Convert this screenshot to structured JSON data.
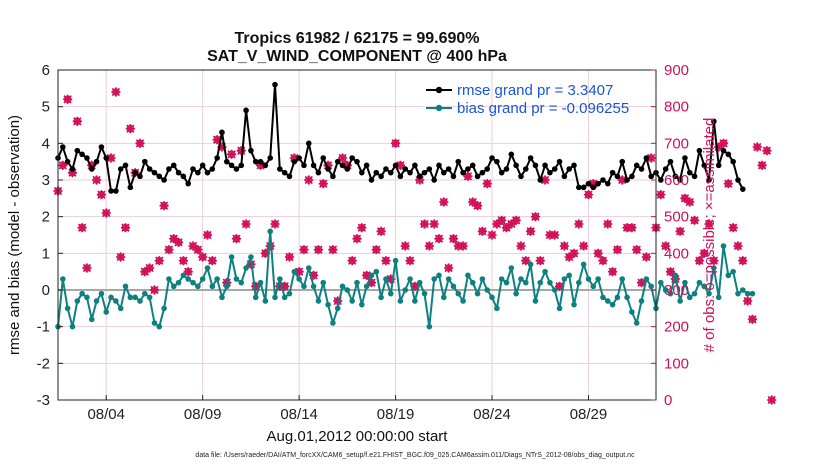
{
  "chart_data": {
    "type": "line",
    "title": "Tropics 61982 / 62175 = 99.690%",
    "subtitle": "SAT_V_WIND_COMPONENT @ 400 hPa",
    "xlabel": "Aug.01,2012 00:00:00 start",
    "ylabel_left": "rmse and bias (model - observation)",
    "ylabel_right": "# of obs: o=possible; ×=assimilated",
    "footnote": "data file: /Users/raeder/DAI/ATM_forcXX/CAM6_setup/f.e21.FHIST_BGC.f09_025.CAM6assim.011/Diags_NTrS_2012-08/obs_diag_output.nc",
    "xlim": [
      1.5,
      32.5
    ],
    "ylim_left": [
      -3,
      6
    ],
    "ylim_right": [
      0,
      900
    ],
    "x_ticks": [
      4,
      9,
      14,
      19,
      24,
      29
    ],
    "x_tick_labels": [
      "08/04",
      "08/09",
      "08/14",
      "08/19",
      "08/24",
      "08/29"
    ],
    "y_ticks_left": [
      -3,
      -2,
      -1,
      0,
      1,
      2,
      3,
      4,
      5,
      6
    ],
    "y_ticks_right": [
      0,
      100,
      200,
      300,
      400,
      500,
      600,
      700,
      800,
      900
    ],
    "colors": {
      "rmse": "#000000",
      "bias": "#0e8080",
      "obs": "#d2105a",
      "zero_line": "#a8a8a8",
      "grid": "#e9cfd9",
      "legend_text": "#1a55d8"
    },
    "legend": [
      "rmse grand pr = 3.3407",
      "bias grand pr = -0.096255"
    ],
    "series": [
      {
        "name": "rmse",
        "x_start": 1.5,
        "x_step": 0.25,
        "values": [
          3.6,
          3.9,
          3.5,
          3.3,
          3.8,
          3.7,
          3.6,
          3.3,
          3.5,
          3.9,
          3.6,
          2.7,
          2.7,
          3.3,
          3.4,
          2.8,
          3.2,
          3.1,
          3.5,
          3.3,
          3.2,
          3.1,
          3.0,
          3.3,
          3.4,
          3.2,
          3.1,
          2.9,
          3.3,
          3.2,
          3.4,
          3.2,
          3.3,
          3.6,
          4.3,
          3.5,
          3.4,
          3.3,
          3.4,
          4.9,
          3.8,
          3.5,
          3.5,
          3.4,
          3.6,
          5.6,
          3.3,
          3.2,
          3.1,
          3.5,
          3.6,
          3.4,
          4.0,
          3.4,
          3.2,
          3.6,
          3.3,
          3.1,
          3.5,
          3.4,
          3.3,
          3.6,
          3.5,
          3.2,
          3.4,
          3.0,
          3.2,
          3.1,
          3.3,
          3.2,
          3.4,
          3.1,
          3.3,
          3.2,
          3.4,
          3.1,
          3.2,
          3.3,
          3.0,
          3.4,
          3.2,
          3.3,
          3.1,
          3.5,
          3.2,
          3.3,
          3.4,
          3.1,
          3.2,
          3.3,
          3.6,
          3.5,
          3.2,
          3.3,
          3.7,
          3.4,
          3.1,
          3.3,
          3.6,
          3.4,
          3.0,
          3.4,
          3.2,
          3.3,
          3.5,
          3.1,
          3.3,
          3.4,
          2.8,
          2.8,
          2.9,
          2.8,
          2.9,
          3.0,
          2.9,
          3.2,
          3.1,
          3.5,
          3.0,
          3.1,
          3.4,
          3.3,
          3.6,
          3.1,
          3.2,
          3.0,
          3.3,
          3.5,
          3.1,
          3.0,
          3.6,
          3.2,
          3.1,
          3.8,
          3.4,
          3.0,
          4.6,
          3.4,
          3.8,
          3.7,
          3.5,
          3.0,
          2.75
        ]
      },
      {
        "name": "bias",
        "x_start": 1.5,
        "x_step": 0.25,
        "values": [
          -1.0,
          0.3,
          -0.5,
          -1.0,
          -0.3,
          -0.1,
          -0.2,
          -0.8,
          -0.3,
          -0.1,
          -0.6,
          -0.2,
          -0.3,
          -0.5,
          0.1,
          -0.2,
          -0.2,
          -0.3,
          -0.1,
          -0.2,
          -0.9,
          -1.0,
          -0.5,
          0.3,
          0.1,
          0.2,
          0.4,
          0.3,
          0.2,
          0.1,
          0.3,
          0.6,
          0.1,
          0.3,
          -0.2,
          0.1,
          0.9,
          0.3,
          0.2,
          0.6,
          0.9,
          -0.2,
          0.2,
          -0.3,
          1.6,
          -0.2,
          0.3,
          -0.2,
          -0.1,
          0.5,
          0.3,
          0.1,
          0.6,
          0.1,
          -0.3,
          0.2,
          -0.4,
          -0.9,
          -0.5,
          0.1,
          0.0,
          -0.3,
          0.2,
          -0.4,
          0.1,
          0.4,
          0.5,
          -0.2,
          0.3,
          -0.1,
          0.8,
          -0.3,
          0.0,
          0.3,
          -0.3,
          0.2,
          -0.1,
          -1.0,
          0.3,
          0.4,
          -0.2,
          0.3,
          0.1,
          -0.1,
          -0.3,
          0.4,
          0.2,
          -0.1,
          0.3,
          0.0,
          -0.2,
          -0.5,
          0.3,
          0.2,
          0.6,
          -0.1,
          0.3,
          0.2,
          0.7,
          -0.3,
          0.2,
          0.5,
          0.2,
          0.0,
          -0.5,
          0.3,
          0.4,
          -0.4,
          0.2,
          0.7,
          0.3,
          0.1,
          0.3,
          -0.2,
          -0.3,
          -0.4,
          -0.2,
          0.3,
          -0.2,
          -0.6,
          -0.9,
          -0.3,
          0.3,
          0.1,
          -0.5,
          0.2,
          0.0,
          -0.1,
          0.4,
          -0.3,
          0.2,
          -0.2,
          -0.1,
          0.2,
          0.1,
          -0.1,
          0.6,
          -0.2,
          1.2,
          0.4,
          0.5,
          -0.1,
          0.0,
          -0.1,
          -0.1
        ]
      },
      {
        "name": "obs_assimilated",
        "x_start": 1.5,
        "x_step": 0.25,
        "values": [
          570,
          640,
          820,
          620,
          760,
          470,
          360,
          640,
          600,
          560,
          510,
          660,
          840,
          390,
          470,
          740,
          620,
          700,
          350,
          360,
          300,
          380,
          530,
          410,
          440,
          430,
          380,
          350,
          420,
          410,
          390,
          450,
          380,
          710,
          690,
          320,
          670,
          440,
          680,
          480,
          370,
          310,
          640,
          400,
          420,
          480,
          310,
          310,
          390,
          660,
          350,
          410,
          600,
          340,
          410,
          590,
          640,
          410,
          270,
          660,
          640,
          380,
          440,
          470,
          340,
          320,
          410,
          460,
          380,
          330,
          700,
          640,
          420,
          380,
          310,
          600,
          480,
          420,
          480,
          440,
          540,
          360,
          440,
          420,
          420,
          610,
          540,
          530,
          460,
          590,
          450,
          480,
          490,
          470,
          480,
          490,
          420,
          380,
          460,
          500,
          380,
          600,
          450,
          450,
          310,
          420,
          390,
          400,
          480,
          420,
          560,
          590,
          400,
          380,
          480,
          350,
          410,
          600,
          470,
          470,
          410,
          320,
          390,
          660,
          470,
          560,
          420,
          350,
          330,
          460,
          550,
          540,
          490,
          380,
          400,
          480,
          380,
          690,
          700,
          590,
          470,
          420,
          380,
          270,
          220,
          690,
          640,
          680,
          0
        ]
      },
      {
        "name": "obs_possible",
        "x_start": 1.5,
        "x_step": 0.25,
        "values": [
          570,
          640,
          820,
          620,
          760,
          470,
          360,
          640,
          600,
          560,
          510,
          660,
          840,
          390,
          470,
          740,
          620,
          700,
          350,
          360,
          300,
          380,
          530,
          410,
          440,
          430,
          380,
          350,
          420,
          410,
          390,
          450,
          380,
          710,
          690,
          320,
          670,
          440,
          680,
          480,
          370,
          310,
          640,
          400,
          420,
          480,
          310,
          310,
          390,
          660,
          350,
          410,
          600,
          340,
          410,
          590,
          640,
          410,
          270,
          660,
          640,
          380,
          440,
          470,
          340,
          320,
          410,
          460,
          380,
          330,
          700,
          640,
          420,
          380,
          310,
          600,
          480,
          420,
          480,
          440,
          540,
          360,
          440,
          420,
          420,
          610,
          540,
          530,
          460,
          590,
          450,
          480,
          490,
          470,
          480,
          490,
          420,
          380,
          460,
          500,
          380,
          600,
          450,
          450,
          310,
          420,
          390,
          400,
          480,
          420,
          560,
          590,
          400,
          380,
          480,
          350,
          410,
          600,
          470,
          470,
          410,
          320,
          390,
          660,
          470,
          560,
          420,
          350,
          330,
          460,
          550,
          540,
          490,
          380,
          400,
          480,
          380,
          690,
          700,
          590,
          470,
          420,
          380,
          270,
          220,
          690,
          640,
          680,
          0
        ]
      }
    ]
  }
}
